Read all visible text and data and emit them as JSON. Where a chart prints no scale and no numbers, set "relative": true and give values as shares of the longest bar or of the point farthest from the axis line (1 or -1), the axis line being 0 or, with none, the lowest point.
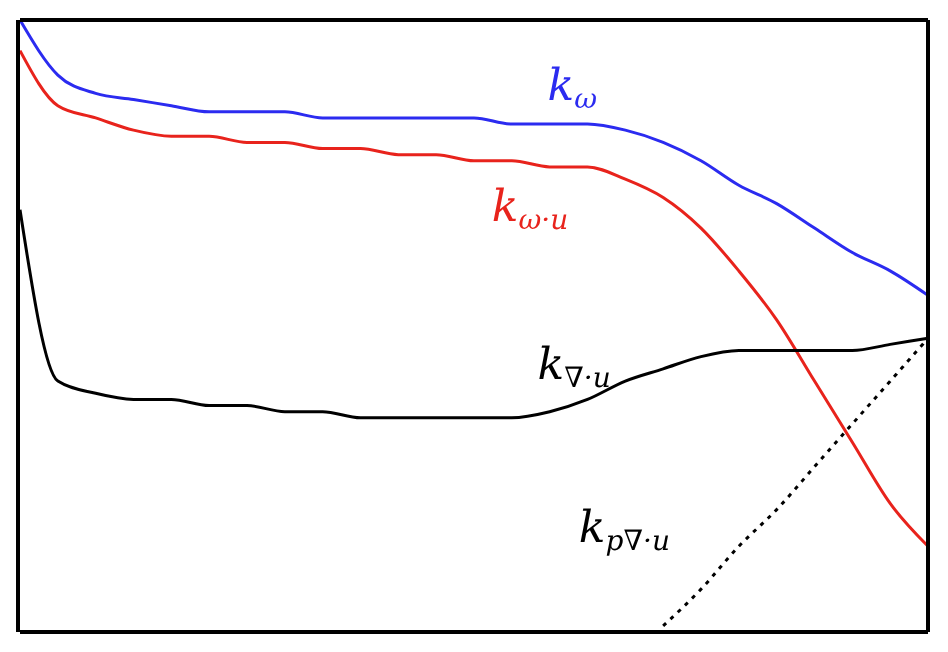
{
  "chart_data": {
    "type": "line",
    "relative": true,
    "legend": false,
    "grid": false,
    "categories": [
      null,
      null,
      null,
      null,
      null,
      null,
      null,
      null,
      null,
      null,
      null,
      null,
      null,
      null,
      null,
      null,
      null,
      null,
      null,
      null,
      null,
      null,
      null,
      null,
      null
    ],
    "series": [
      {
        "name": "k$_{ω·u}$",
        "color": "#e8231c",
        "line_style": "solid",
        "values": [
          0.95,
          0.86,
          0.84,
          0.82,
          0.81,
          0.81,
          0.8,
          0.8,
          0.79,
          0.79,
          0.78,
          0.78,
          0.77,
          0.77,
          0.76,
          0.76,
          0.74,
          0.71,
          0.66,
          0.59,
          0.51,
          0.41,
          0.31,
          0.21,
          0.14
        ]
      },
      {
        "name": "k$_{ω}$",
        "color": "#2b2bf0",
        "line_style": "solid",
        "values": [
          1,
          0.91,
          0.88,
          0.87,
          0.86,
          0.85,
          0.85,
          0.85,
          0.84,
          0.84,
          0.84,
          0.84,
          0.84,
          0.83,
          0.83,
          0.83,
          0.82,
          0.8,
          0.77,
          0.73,
          0.7,
          0.66,
          0.62,
          0.59,
          0.55
        ]
      },
      {
        "name": "k$_{∇·u}$",
        "color": "#000000",
        "line_style": "solid",
        "values": [
          0.69,
          0.41,
          0.39,
          0.38,
          0.38,
          0.37,
          0.37,
          0.36,
          0.36,
          0.35,
          0.35,
          0.35,
          0.35,
          0.35,
          0.36,
          0.38,
          0.41,
          0.43,
          0.45,
          0.46,
          0.46,
          0.46,
          0.46,
          0.47,
          0.48
        ]
      },
      {
        "name": "k$_{p∇·u}$",
        "color": "#000000",
        "line_style": "dotted",
        "values": [
          null,
          null,
          null,
          null,
          null,
          null,
          null,
          null,
          null,
          null,
          null,
          null,
          null,
          null,
          null,
          null,
          null,
          0.01,
          0.07,
          0.14,
          0.2,
          0.27,
          0.34,
          0.41,
          0.48
        ]
      }
    ]
  }
}
